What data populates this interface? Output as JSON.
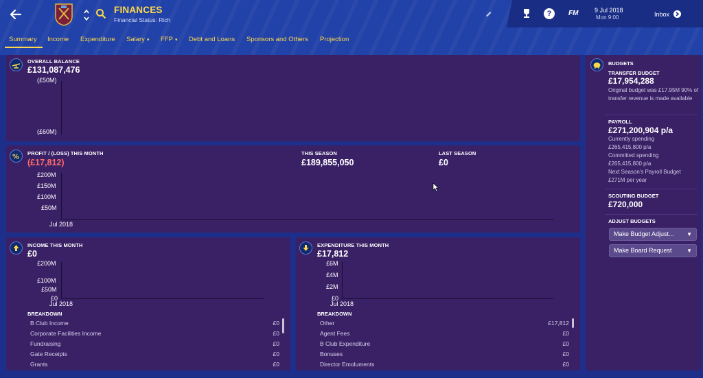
{
  "header": {
    "title": "FINANCES",
    "subtitle": "Financial Status: Rich",
    "brand": "FM",
    "date": "9 Jul 2018",
    "time": "Mon 9:00",
    "inbox_label": "Inbox"
  },
  "tabs": [
    {
      "label": "Summary",
      "active": true
    },
    {
      "label": "Income"
    },
    {
      "label": "Expenditure"
    },
    {
      "label": "Salary",
      "dropdown": true
    },
    {
      "label": "FFP",
      "dropdown": true
    },
    {
      "label": "Debt and Loans"
    },
    {
      "label": "Sponsors and Others"
    },
    {
      "label": "Projection"
    }
  ],
  "overall": {
    "heading": "OVERALL BALANCE",
    "value": "£131,087,476",
    "y_top": "(£50M)",
    "y_bottom": "(£60M)"
  },
  "profit": {
    "heading": "PROFIT / (LOSS) THIS MONTH",
    "value": "(£17,812)",
    "season_heading": "THIS SEASON",
    "season_value": "£189,855,050",
    "last_heading": "LAST SEASON",
    "last_value": "£0",
    "y_ticks": [
      "£200M",
      "£150M",
      "£100M",
      "£50M"
    ],
    "x_label": "Jul 2018"
  },
  "income": {
    "heading": "INCOME THIS MONTH",
    "value": "£0",
    "y_ticks": [
      "£200M",
      "£100M",
      "£50M",
      "£0"
    ],
    "x_label": "Jul 2018",
    "breakdown_title": "BREAKDOWN",
    "rows": [
      {
        "label": "B Club Income",
        "value": "£0"
      },
      {
        "label": "Corporate Facilities Income",
        "value": "£0"
      },
      {
        "label": "Fundraising",
        "value": "£0"
      },
      {
        "label": "Gate Receipts",
        "value": "£0"
      },
      {
        "label": "Grants",
        "value": "£0"
      }
    ]
  },
  "expenditure": {
    "heading": "EXPENDITURE THIS MONTH",
    "value": "£17,812",
    "y_ticks": [
      "£6M",
      "£4M",
      "£2M",
      "£0"
    ],
    "x_label": "Jul 2018",
    "breakdown_title": "BREAKDOWN",
    "rows": [
      {
        "label": "Other",
        "value": "£17,812"
      },
      {
        "label": "Agent Fees",
        "value": "£0"
      },
      {
        "label": "B Club Expenditure",
        "value": "£0"
      },
      {
        "label": "Bonuses",
        "value": "£0"
      },
      {
        "label": "Director Emoluments",
        "value": "£0"
      }
    ]
  },
  "budgets": {
    "heading": "BUDGETS",
    "transfer_heading": "TRANSFER BUDGET",
    "transfer_value": "£17,954,288",
    "transfer_note": "Original budget was £17.95M 90% of transfer revenue is made available",
    "payroll_heading": "PAYROLL",
    "payroll_value": "£271,200,904 p/a",
    "payroll_note1": "Currently spending £265,415,800 p/a",
    "payroll_note2": "Committed spending £265,415,800 p/a",
    "payroll_note3": "Next Season's Payroll Budget £271M per year",
    "scouting_heading": "SCOUTING BUDGET",
    "scouting_value": "£720,000",
    "adjust_heading": "ADJUST BUDGETS",
    "adjust_button": "Make Budget Adjust...",
    "board_button": "Make Board Request"
  },
  "colors": {
    "accent_yellow": "#ffd84a",
    "panel": "#3a2166",
    "header": "#2142a8",
    "negative": "#ff6b6b"
  }
}
